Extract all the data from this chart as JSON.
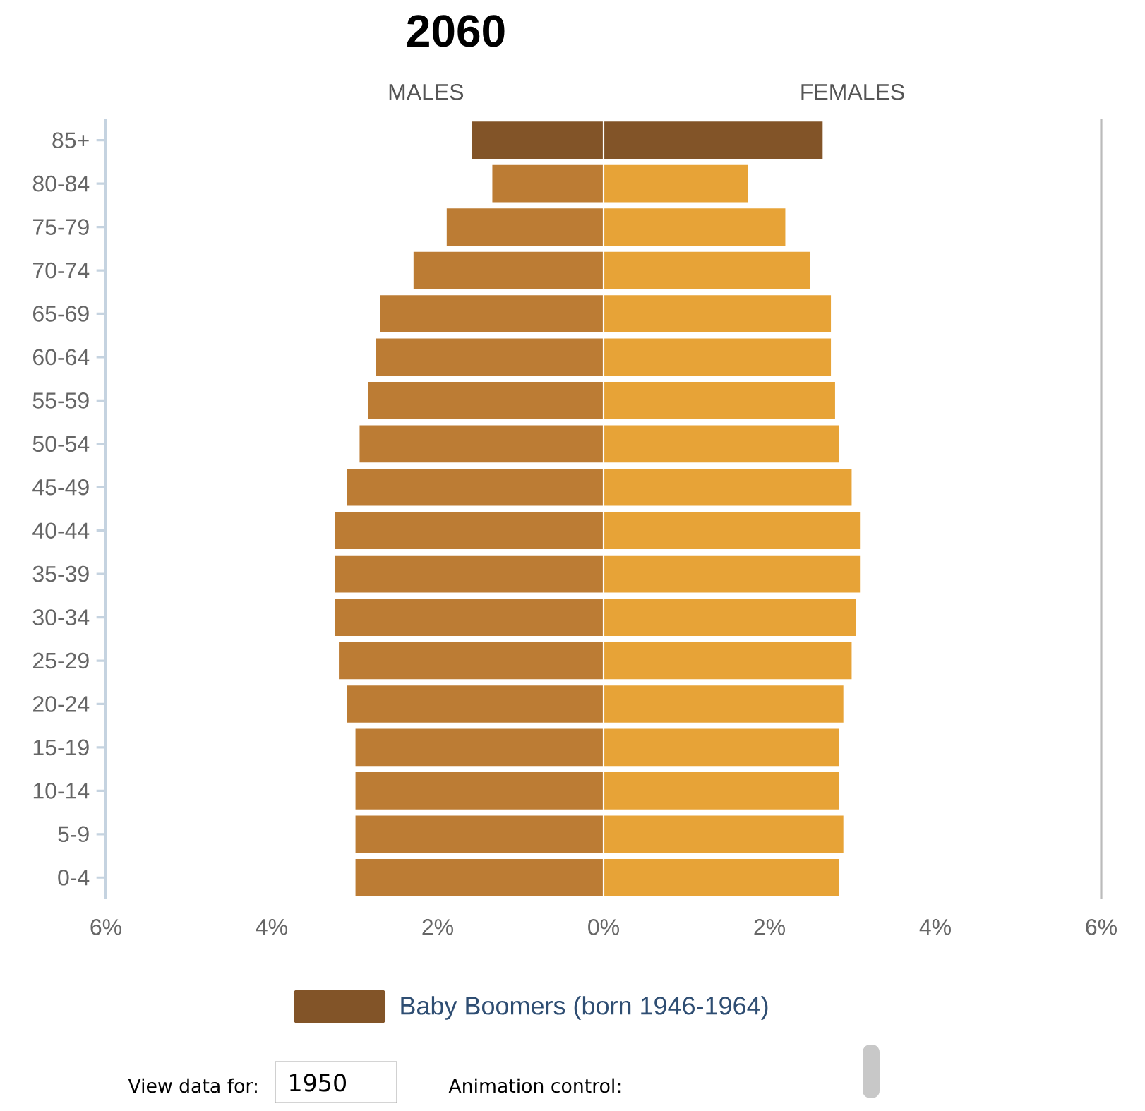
{
  "chart_data": {
    "type": "bar",
    "orientation": "horizontal",
    "stacked": true,
    "title": "2060",
    "categories": [
      "85+",
      "80-84",
      "75-79",
      "70-74",
      "65-69",
      "60-64",
      "55-59",
      "50-54",
      "45-49",
      "40-44",
      "35-39",
      "30-34",
      "25-29",
      "20-24",
      "15-19",
      "10-14",
      "5-9",
      "0-4"
    ],
    "series": [
      {
        "name": "MALES",
        "colors": [
          "#825428",
          "#bc7c34",
          "#bc7c34",
          "#bc7c34",
          "#bc7c34",
          "#bc7c34",
          "#bc7c34",
          "#bc7c34",
          "#bc7c34",
          "#bc7c34",
          "#bc7c34",
          "#bc7c34",
          "#bc7c34",
          "#bc7c34",
          "#bc7c34",
          "#bc7c34",
          "#bc7c34",
          "#bc7c34"
        ],
        "values": [
          -1.6,
          -1.35,
          -1.9,
          -2.3,
          -2.7,
          -2.75,
          -2.85,
          -2.95,
          -3.1,
          -3.25,
          -3.25,
          -3.25,
          -3.2,
          -3.1,
          -3.0,
          -3.0,
          -3.0,
          -3.0
        ]
      },
      {
        "name": "FEMALES",
        "colors": [
          "#825428",
          "#e7a337",
          "#e7a337",
          "#e7a337",
          "#e7a337",
          "#e7a337",
          "#e7a337",
          "#e7a337",
          "#e7a337",
          "#e7a337",
          "#e7a337",
          "#e7a337",
          "#e7a337",
          "#e7a337",
          "#e7a337",
          "#e7a337",
          "#e7a337",
          "#e7a337"
        ],
        "values": [
          2.65,
          1.75,
          2.2,
          2.5,
          2.75,
          2.75,
          2.8,
          2.85,
          3.0,
          3.1,
          3.1,
          3.05,
          3.0,
          2.9,
          2.85,
          2.85,
          2.9,
          2.85
        ]
      }
    ],
    "xlim": [
      -6,
      6
    ],
    "xticks": [
      {
        "value": -6,
        "label": "6%"
      },
      {
        "value": -4,
        "label": "4%"
      },
      {
        "value": -2,
        "label": "2%"
      },
      {
        "value": 0,
        "label": "0%"
      },
      {
        "value": 2,
        "label": "2%"
      },
      {
        "value": 4,
        "label": "4%"
      },
      {
        "value": 6,
        "label": "6%"
      }
    ],
    "annotations": [
      "Baby Boomers (born 1946-1964)",
      "View data for:",
      "1950",
      "Animation control:"
    ]
  }
}
